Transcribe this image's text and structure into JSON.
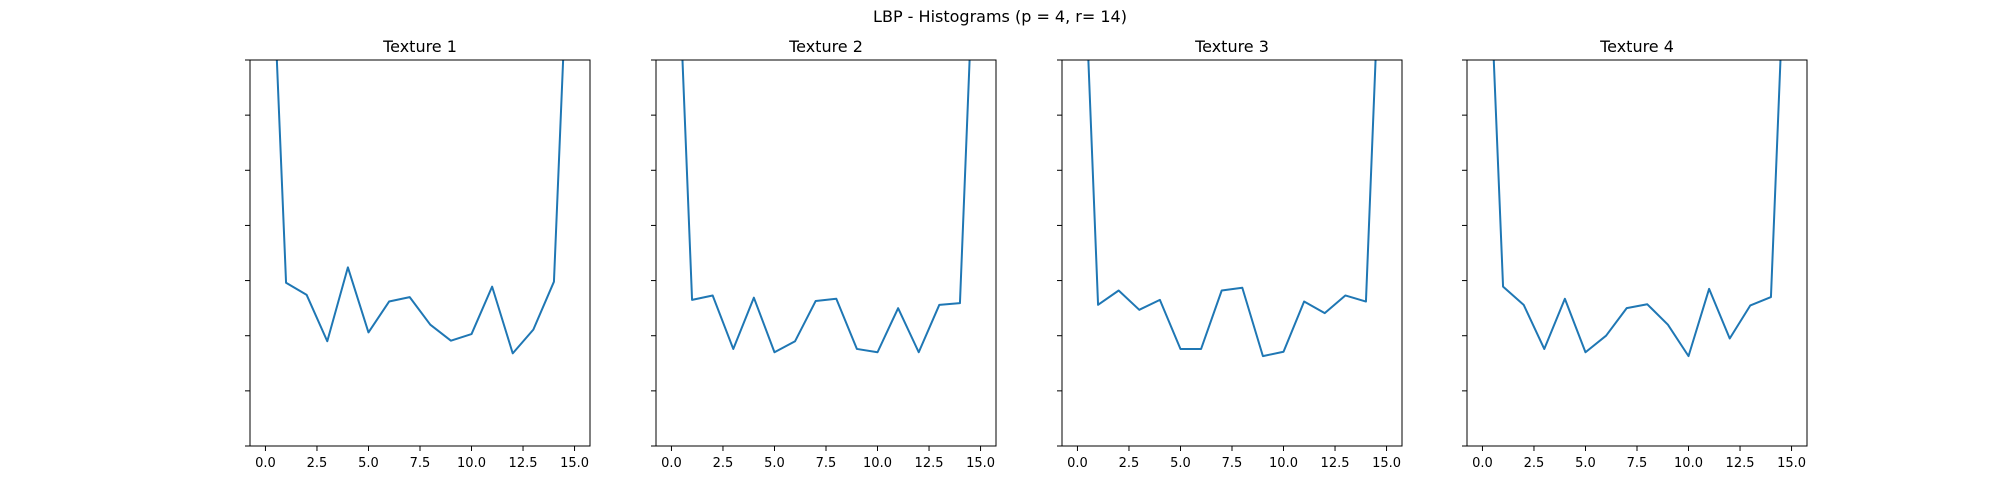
{
  "figure": {
    "title": "LBP - Histograms (p = 4, r= 14)",
    "line_color": "#1f77b4"
  },
  "chart_data": [
    {
      "type": "line",
      "title": "Texture 1",
      "xlabel": "",
      "ylabel": "",
      "xlim": [
        -0.75,
        15.75
      ],
      "ylim": [
        0,
        7
      ],
      "grid": false,
      "x_ticks": [
        0.0,
        2.5,
        5.0,
        7.5,
        10.0,
        12.5,
        15.0
      ],
      "x_tick_labels": [
        "0.0",
        "2.5",
        "5.0",
        "7.5",
        "10.0",
        "12.5",
        "15.0"
      ],
      "y_ticks": [
        0,
        1,
        2,
        3,
        4,
        5,
        6,
        7
      ],
      "y_tick_labels_visible": false,
      "x": [
        0,
        1,
        2,
        3,
        4,
        5,
        6,
        7,
        8,
        9,
        10,
        11,
        12,
        13,
        14,
        15
      ],
      "values": [
        12.0,
        2.96,
        2.74,
        1.9,
        3.24,
        2.06,
        2.62,
        2.7,
        2.2,
        1.91,
        2.03,
        2.89,
        1.68,
        2.11,
        2.98,
        12.0
      ]
    },
    {
      "type": "line",
      "title": "Texture 2",
      "xlabel": "",
      "ylabel": "",
      "xlim": [
        -0.75,
        15.75
      ],
      "ylim": [
        0,
        7
      ],
      "grid": false,
      "x_ticks": [
        0.0,
        2.5,
        5.0,
        7.5,
        10.0,
        12.5,
        15.0
      ],
      "x_tick_labels": [
        "0.0",
        "2.5",
        "5.0",
        "7.5",
        "10.0",
        "12.5",
        "15.0"
      ],
      "y_ticks": [
        0,
        1,
        2,
        3,
        4,
        5,
        6,
        7
      ],
      "y_tick_labels_visible": false,
      "x": [
        0,
        1,
        2,
        3,
        4,
        5,
        6,
        7,
        8,
        9,
        10,
        11,
        12,
        13,
        14,
        15
      ],
      "values": [
        12.0,
        2.65,
        2.73,
        1.76,
        2.69,
        1.7,
        1.9,
        2.63,
        2.67,
        1.76,
        1.7,
        2.5,
        1.7,
        2.56,
        2.59,
        12.0
      ]
    },
    {
      "type": "line",
      "title": "Texture 3",
      "xlabel": "",
      "ylabel": "",
      "xlim": [
        -0.75,
        15.75
      ],
      "ylim": [
        0,
        7
      ],
      "grid": false,
      "x_ticks": [
        0.0,
        2.5,
        5.0,
        7.5,
        10.0,
        12.5,
        15.0
      ],
      "x_tick_labels": [
        "0.0",
        "2.5",
        "5.0",
        "7.5",
        "10.0",
        "12.5",
        "15.0"
      ],
      "y_ticks": [
        0,
        1,
        2,
        3,
        4,
        5,
        6,
        7
      ],
      "y_tick_labels_visible": false,
      "x": [
        0,
        1,
        2,
        3,
        4,
        5,
        6,
        7,
        8,
        9,
        10,
        11,
        12,
        13,
        14,
        15
      ],
      "values": [
        12.0,
        2.56,
        2.82,
        2.47,
        2.65,
        1.76,
        1.76,
        2.82,
        2.87,
        1.63,
        1.71,
        2.62,
        2.41,
        2.73,
        2.62,
        12.0
      ]
    },
    {
      "type": "line",
      "title": "Texture 4",
      "xlabel": "",
      "ylabel": "",
      "xlim": [
        -0.75,
        15.75
      ],
      "ylim": [
        0,
        7
      ],
      "grid": false,
      "x_ticks": [
        0.0,
        2.5,
        5.0,
        7.5,
        10.0,
        12.5,
        15.0
      ],
      "x_tick_labels": [
        "0.0",
        "2.5",
        "5.0",
        "7.5",
        "10.0",
        "12.5",
        "15.0"
      ],
      "y_ticks": [
        0,
        1,
        2,
        3,
        4,
        5,
        6,
        7
      ],
      "y_tick_labels_visible": false,
      "x": [
        0,
        1,
        2,
        3,
        4,
        5,
        6,
        7,
        8,
        9,
        10,
        11,
        12,
        13,
        14,
        15
      ],
      "values": [
        12.0,
        2.89,
        2.56,
        1.76,
        2.67,
        1.7,
        2.0,
        2.5,
        2.57,
        2.2,
        1.63,
        2.85,
        1.95,
        2.55,
        2.7,
        12.0
      ]
    }
  ]
}
